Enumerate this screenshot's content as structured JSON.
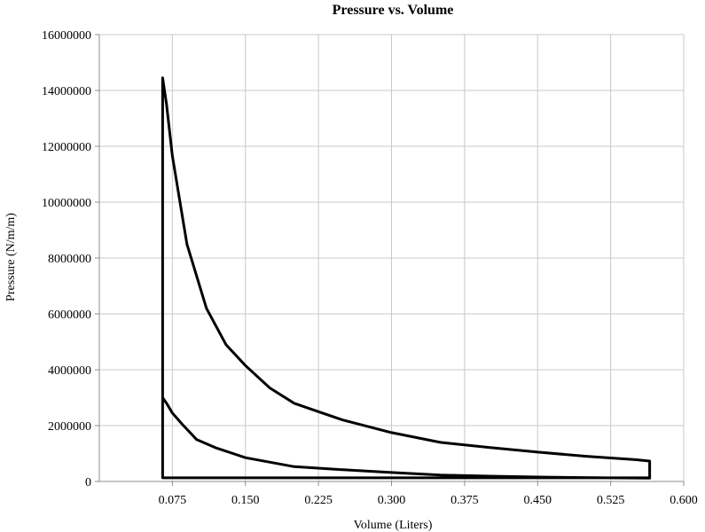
{
  "chart_data": {
    "type": "line",
    "title": "Pressure vs. Volume",
    "xlabel": "Volume (Liters)",
    "ylabel": "Pressure (N/m/m)",
    "xlim": [
      0,
      0.6
    ],
    "ylim": [
      0,
      16000000
    ],
    "x_ticks": [
      "0.075",
      "0.150",
      "0.225",
      "0.300",
      "0.375",
      "0.450",
      "0.525",
      "0.600"
    ],
    "y_ticks": [
      "0",
      "2000000",
      "4000000",
      "6000000",
      "8000000",
      "10000000",
      "12000000",
      "14000000",
      "16000000"
    ],
    "grid": true,
    "legend": "none",
    "series": [
      {
        "x": [
          0.065,
          0.065,
          0.069,
          0.075,
          0.09,
          0.11,
          0.13,
          0.15,
          0.175,
          0.2,
          0.225,
          0.25,
          0.3,
          0.35,
          0.4,
          0.45,
          0.5,
          0.55,
          0.565,
          0.565,
          0.52,
          0.45,
          0.4,
          0.35,
          0.3,
          0.25,
          0.2,
          0.15,
          0.12,
          0.1,
          0.085,
          0.075,
          0.069,
          0.065,
          0.065,
          0.565
        ],
        "y": [
          130000,
          14450000,
          13500000,
          11650000,
          8500000,
          6200000,
          4900000,
          4150000,
          3350000,
          2800000,
          2500000,
          2200000,
          1750000,
          1400000,
          1220000,
          1050000,
          900000,
          780000,
          730000,
          120000,
          130000,
          160000,
          190000,
          230000,
          320000,
          420000,
          530000,
          850000,
          1200000,
          1500000,
          2050000,
          2450000,
          2800000,
          3000000,
          130000,
          130000
        ]
      }
    ]
  }
}
